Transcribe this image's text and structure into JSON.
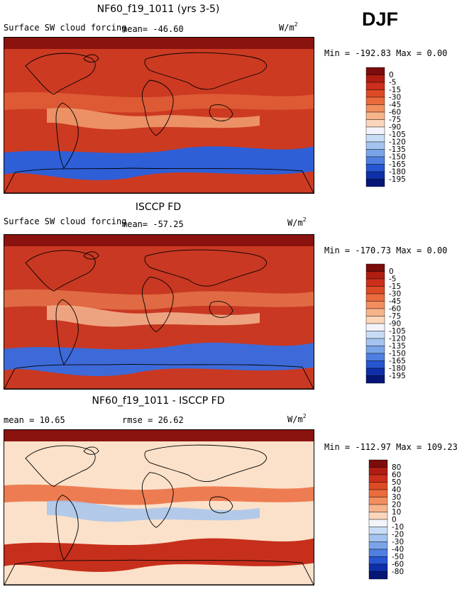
{
  "season": "DJF",
  "panels": [
    {
      "title": "NF60_f19_1011 (yrs 3-5)",
      "field": "Surface SW cloud forcing",
      "mean_label": "mean= -46.60",
      "rmse_label": "",
      "units": "W/m",
      "units_exp": "2",
      "minmax": "Min = -192.83 Max =    0.00",
      "colorbar": {
        "labels": [
          "0",
          "-5",
          "-15",
          "-30",
          "-45",
          "-60",
          "-75",
          "-90",
          "-105",
          "-120",
          "-135",
          "-150",
          "-165",
          "-180",
          "-195"
        ],
        "colors": [
          "#7a0c0c",
          "#b01d12",
          "#cc2f1c",
          "#dd4a26",
          "#ea6b3e",
          "#f28f5f",
          "#f7b48b",
          "#fbd6ba",
          "#f3f4fb",
          "#c9dcf5",
          "#a4c3ef",
          "#7aa4e8",
          "#4f7fe0",
          "#2656d1",
          "#0f2fa8",
          "#061676"
        ]
      },
      "map_style": {
        "bg": "#cc3a22",
        "band": "#dd5a34",
        "wet": "#f1a071",
        "south": "#2f5fd6"
      }
    },
    {
      "title": "ISCCP FD",
      "field": "Surface SW cloud forcing",
      "mean_label": "mean= -57.25",
      "rmse_label": "",
      "units": "W/m",
      "units_exp": "2",
      "minmax": "Min = -170.73 Max =    0.00",
      "colorbar": {
        "labels": [
          "0",
          "-5",
          "-15",
          "-30",
          "-45",
          "-60",
          "-75",
          "-90",
          "-105",
          "-120",
          "-135",
          "-150",
          "-165",
          "-180",
          "-195"
        ],
        "colors": [
          "#7a0c0c",
          "#b01d12",
          "#cc2f1c",
          "#dd4a26",
          "#ea6b3e",
          "#f28f5f",
          "#f7b48b",
          "#fbd6ba",
          "#f3f4fb",
          "#c9dcf5",
          "#a4c3ef",
          "#7aa4e8",
          "#4f7fe0",
          "#2656d1",
          "#0f2fa8",
          "#061676"
        ]
      },
      "map_style": {
        "bg": "#c93822",
        "band": "#e06a43",
        "wet": "#f4b690",
        "south": "#3d6ad8"
      }
    },
    {
      "title": "NF60_f19_1011 - ISCCP FD",
      "field": "",
      "mean_label": "mean =  10.65",
      "rmse_label": "rmse =  26.62",
      "units": "W/m",
      "units_exp": "2",
      "minmax": "Min = -112.97 Max = 109.23",
      "colorbar": {
        "labels": [
          "80",
          "60",
          "50",
          "40",
          "30",
          "20",
          "10",
          "0",
          "-10",
          "-20",
          "-30",
          "-40",
          "-50",
          "-60",
          "-80"
        ],
        "colors": [
          "#7a0c0c",
          "#b01d12",
          "#cc2f1c",
          "#dd4a26",
          "#ea6b3e",
          "#f28f5f",
          "#f7b48b",
          "#fbd6ba",
          "#f3f4fb",
          "#c9dcf5",
          "#a4c3ef",
          "#7aa4e8",
          "#4f7fe0",
          "#2656d1",
          "#0f2fa8",
          "#061676"
        ]
      },
      "map_style": {
        "bg": "#fbe1c9",
        "band": "#ee7c52",
        "wet": "#a6c4ef",
        "south": "#c62f1c"
      }
    }
  ]
}
